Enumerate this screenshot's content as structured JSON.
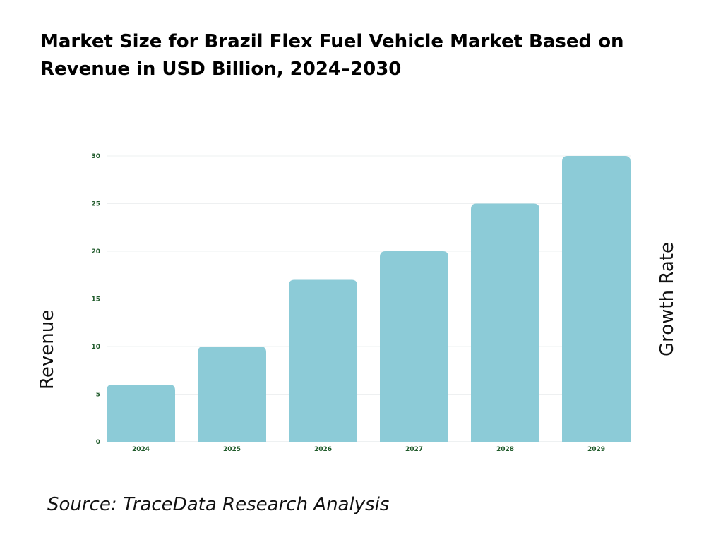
{
  "title": "Market Size for Brazil Flex Fuel Vehicle Market Based on Revenue in USD Billion, 2024–2030",
  "source": "Source: TraceData Research Analysis",
  "chart_data": {
    "type": "bar",
    "title": "Market Size for Brazil Flex Fuel Vehicle Market Based on Revenue in USD Billion, 2024–2030",
    "categories": [
      "2024",
      "2025",
      "2026",
      "2027",
      "2028",
      "2029"
    ],
    "values": [
      6,
      10,
      17,
      20,
      25,
      30
    ],
    "xlabel": "",
    "ylabel": "Revenue",
    "y2label": "Growth Rate",
    "ylim": [
      0,
      30
    ],
    "yticks": [
      0,
      5,
      10,
      15,
      20,
      25,
      30
    ],
    "grid": true,
    "bar_color": "#8ccbd7",
    "tick_color": "#1f5a2a"
  }
}
